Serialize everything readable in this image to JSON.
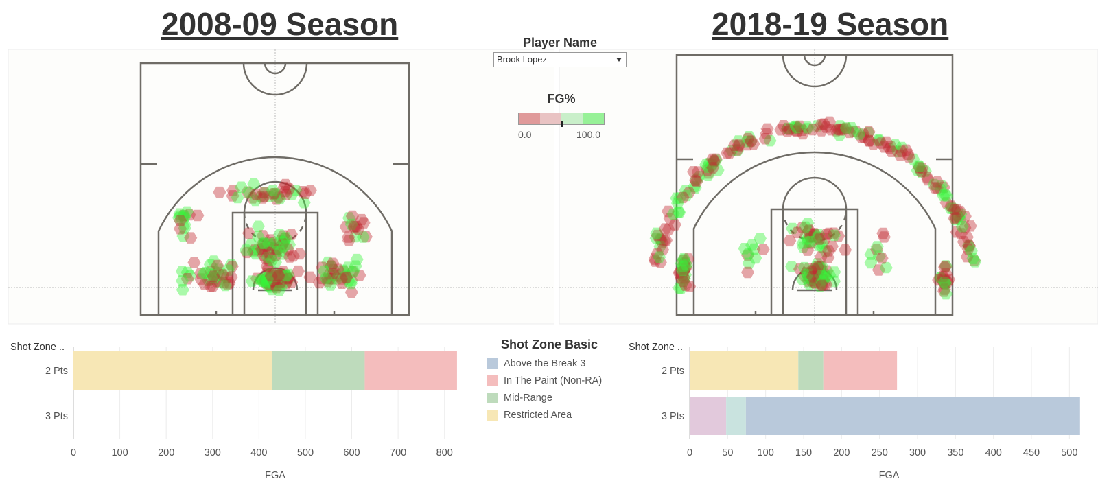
{
  "player_filter": {
    "label": "Player Name",
    "selected": "Brook Lopez"
  },
  "fg_legend": {
    "title": "FG%",
    "min_label": "0.0",
    "max_label": "100.0",
    "colors": [
      "#e09a9a",
      "#e9c3c3",
      "#c9efc9",
      "#97f197"
    ]
  },
  "zone_legend": {
    "title": "Shot Zone Basic",
    "items": [
      {
        "label": "Above the Break 3",
        "color": "#b9c9db"
      },
      {
        "label": "In The Paint (Non-RA)",
        "color": "#f4bdbd"
      },
      {
        "label": "Mid-Range",
        "color": "#bedbbc"
      },
      {
        "label": "Restricted Area",
        "color": "#f7e7b5"
      }
    ],
    "extra_colors": [
      "#e2c9dc",
      "#c9e3df"
    ]
  },
  "chart_data": [
    {
      "type": "scatter",
      "title": "2008-09 Season",
      "note": "hexbin shot chart, colored by FG%"
    },
    {
      "type": "scatter",
      "title": "2018-19 Season",
      "note": "hexbin shot chart, colored by FG%"
    },
    {
      "type": "bar",
      "stacked": true,
      "orientation": "horizontal",
      "row_header": "Shot Zone ..",
      "xlabel": "FGA",
      "categories": [
        "2 Pts",
        "3 Pts"
      ],
      "xlim": [
        0,
        870
      ],
      "ticks": [
        0,
        100,
        200,
        300,
        400,
        500,
        600,
        700,
        800
      ],
      "series": [
        {
          "name": "Restricted Area",
          "values": [
            428,
            0
          ]
        },
        {
          "name": "Mid-Range",
          "values": [
            200,
            0
          ]
        },
        {
          "name": "In The Paint (Non-RA)",
          "values": [
            199,
            0
          ]
        }
      ]
    },
    {
      "type": "bar",
      "stacked": true,
      "orientation": "horizontal",
      "row_header": "Shot Zone ..",
      "xlabel": "FGA",
      "categories": [
        "2 Pts",
        "3 Pts"
      ],
      "xlim": [
        0,
        525
      ],
      "ticks": [
        0,
        50,
        100,
        150,
        200,
        250,
        300,
        350,
        400,
        450,
        500
      ],
      "series": [
        {
          "name": "Restricted Area",
          "values": [
            143,
            0
          ]
        },
        {
          "name": "Mid-Range",
          "values": [
            33,
            0
          ]
        },
        {
          "name": "In The Paint (Non-RA)",
          "values": [
            97,
            0
          ]
        },
        {
          "values": [
            0,
            48
          ]
        },
        {
          "values": [
            0,
            26
          ]
        },
        {
          "name": "Above the Break 3",
          "values": [
            0,
            440
          ]
        }
      ]
    }
  ]
}
